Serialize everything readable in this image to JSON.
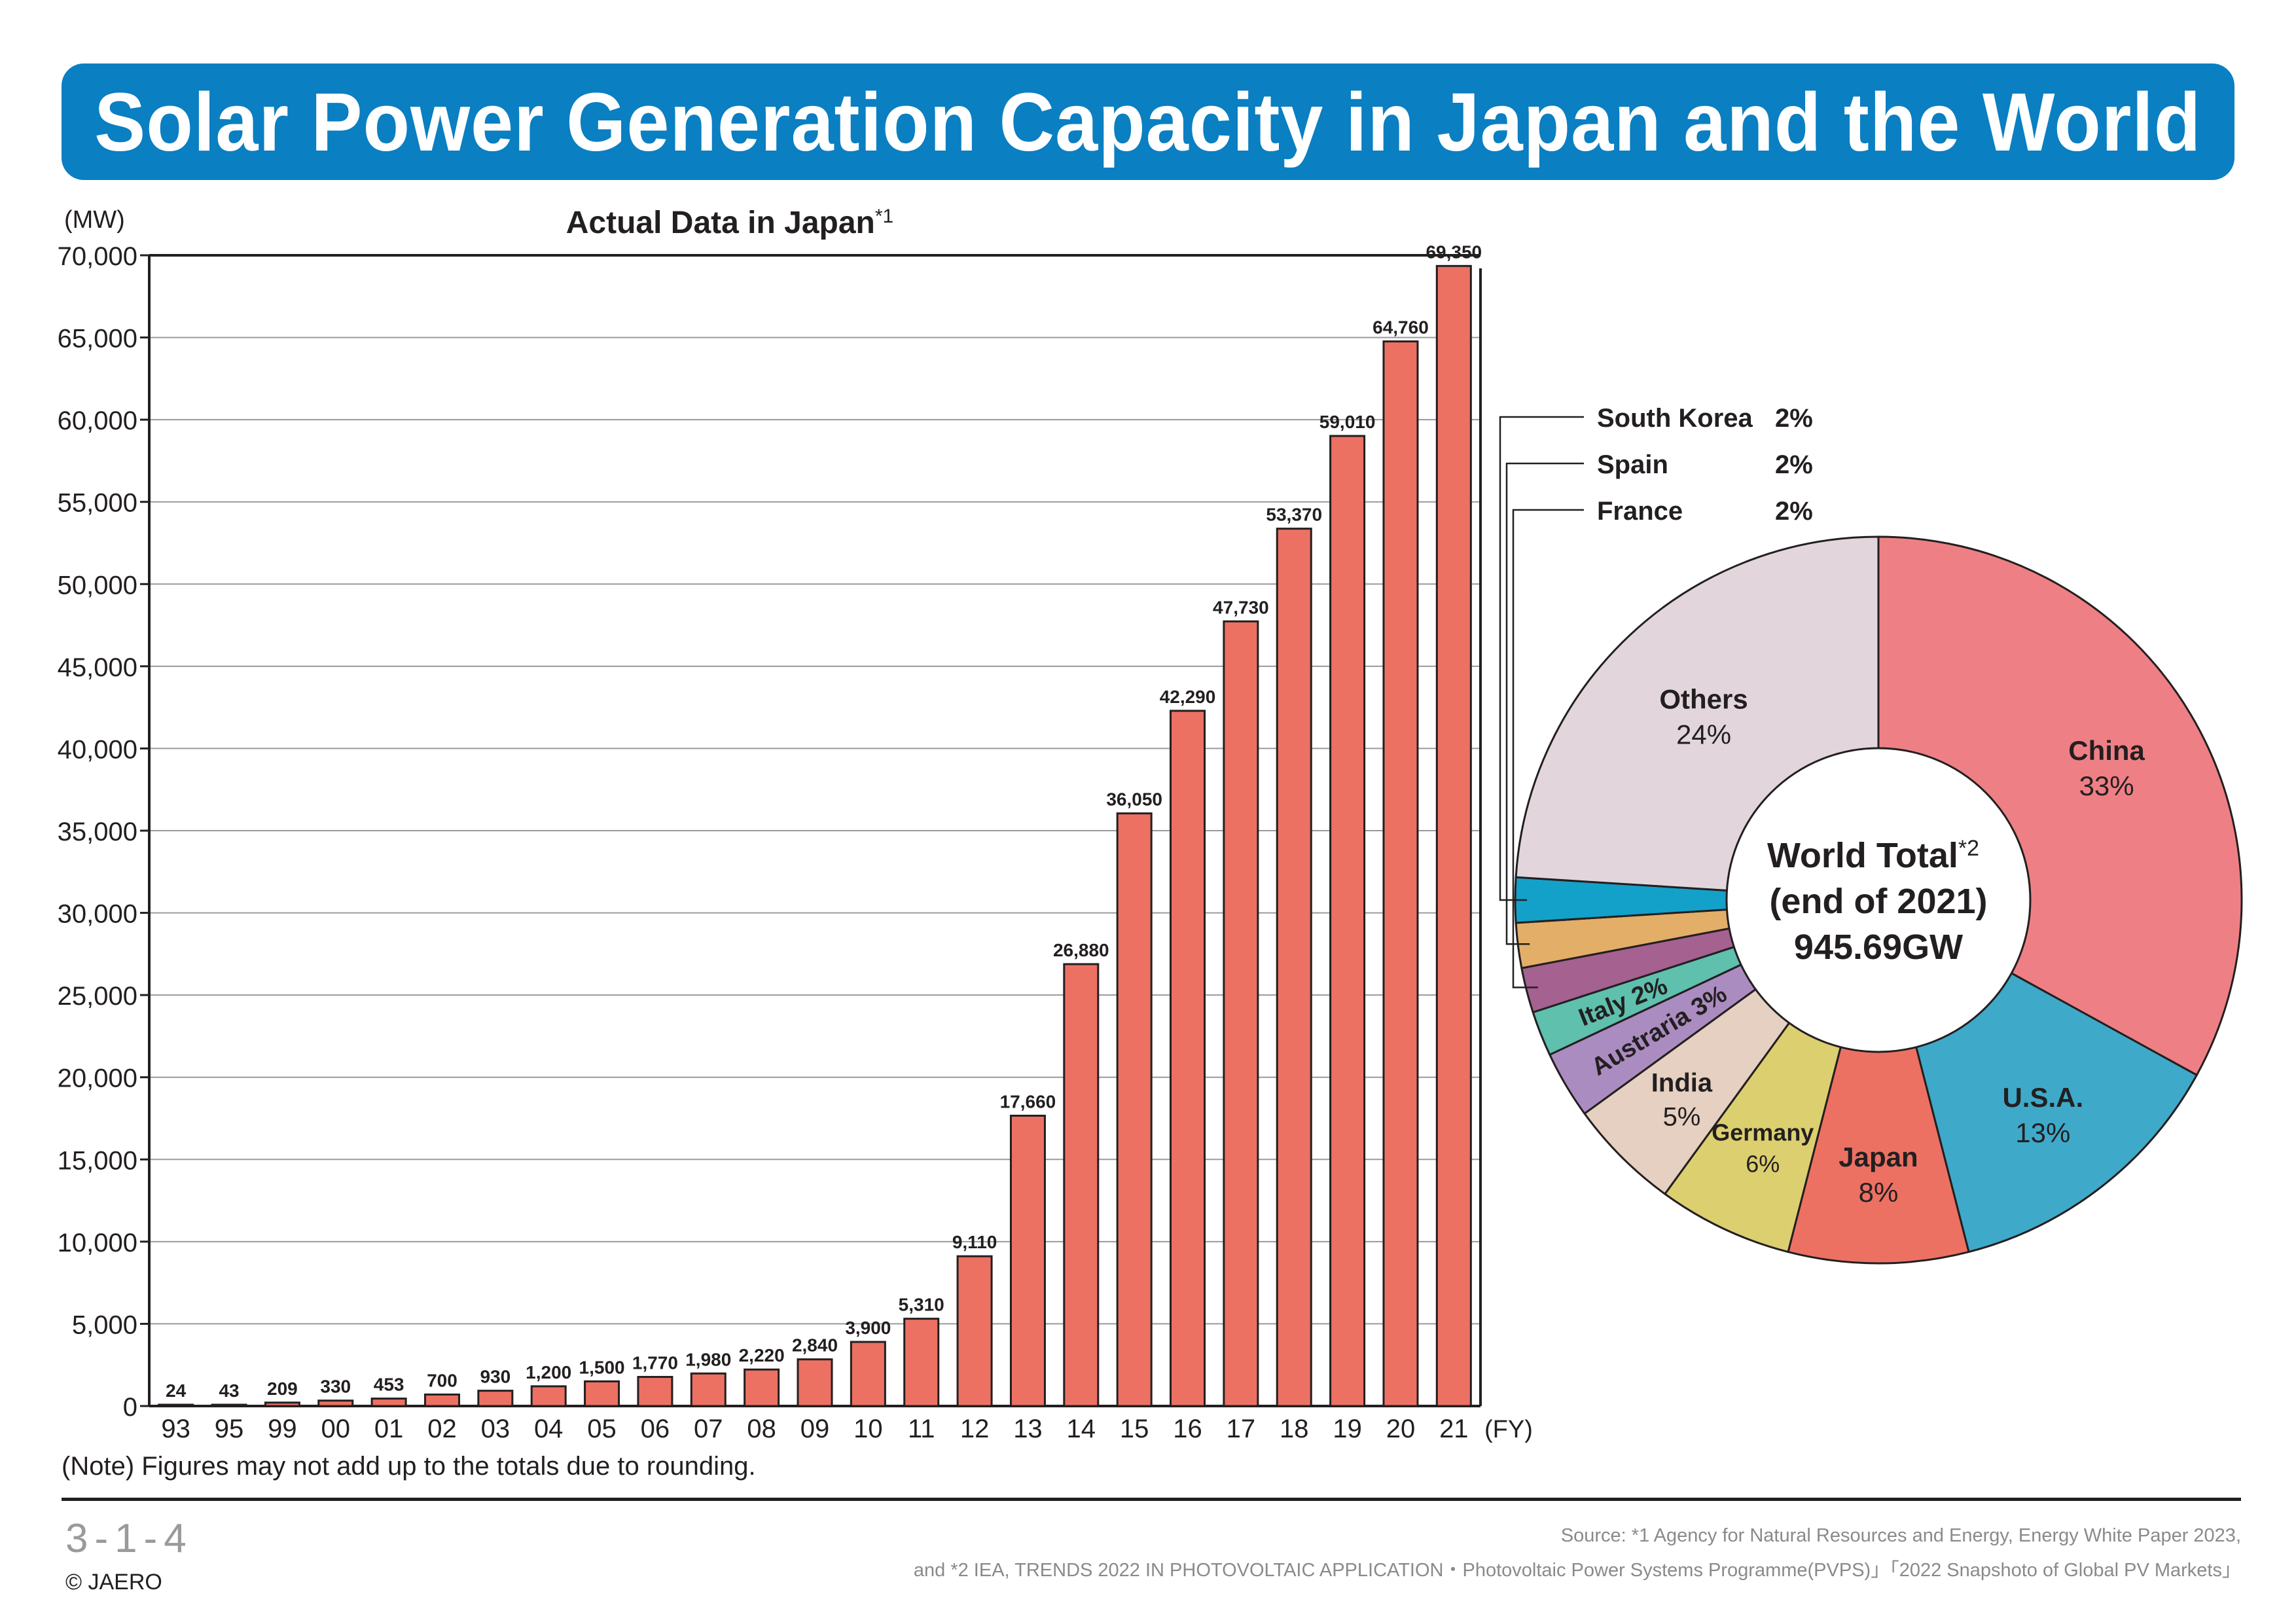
{
  "title": "Solar Power Generation Capacity in Japan and the World",
  "chart_data": [
    {
      "type": "bar",
      "title": "Actual Data in Japan",
      "title_footnote": "*1",
      "ylabel": "(MW)",
      "xlabel": "(FY)",
      "ylim": [
        0,
        70000
      ],
      "yticks": [
        0,
        5000,
        10000,
        15000,
        20000,
        25000,
        30000,
        35000,
        40000,
        45000,
        50000,
        55000,
        60000,
        65000,
        70000
      ],
      "ytick_labels": [
        "0",
        "5,000",
        "10,000",
        "15,000",
        "20,000",
        "25,000",
        "30,000",
        "35,000",
        "40,000",
        "45,000",
        "50,000",
        "55,000",
        "60,000",
        "65,000",
        "70,000"
      ],
      "grid": true,
      "categories": [
        "93",
        "95",
        "99",
        "00",
        "01",
        "02",
        "03",
        "04",
        "05",
        "06",
        "07",
        "08",
        "09",
        "10",
        "11",
        "12",
        "13",
        "14",
        "15",
        "16",
        "17",
        "18",
        "19",
        "20",
        "21"
      ],
      "values": [
        24,
        43,
        209,
        330,
        453,
        700,
        930,
        1200,
        1500,
        1770,
        1980,
        2220,
        2840,
        3900,
        5310,
        9110,
        17660,
        26880,
        36050,
        42290,
        47730,
        53370,
        59010,
        64760,
        69350
      ],
      "value_labels": [
        "24",
        "43",
        "209",
        "330",
        "453",
        "700",
        "930",
        "1,200",
        "1,500",
        "1,770",
        "1,980",
        "2,220",
        "2,840",
        "3,900",
        "5,310",
        "9,110",
        "17,660",
        "26,880",
        "36,050",
        "42,290",
        "47,730",
        "53,370",
        "59,010",
        "64,760",
        "69,350"
      ],
      "bar_color": "#ec7163"
    },
    {
      "type": "pie",
      "style": "donut",
      "center_label": [
        "World Total",
        "(end of 2021)",
        "945.69GW"
      ],
      "center_footnote": "*2",
      "slices": [
        {
          "label": "China",
          "pct": "33%",
          "value": 33,
          "color": "#ee8085"
        },
        {
          "label": "U.S.A.",
          "pct": "13%",
          "value": 13,
          "color": "#3fa9c9"
        },
        {
          "label": "Japan",
          "pct": "8%",
          "value": 8,
          "color": "#ec7163"
        },
        {
          "label": "Germany",
          "pct": "6%",
          "value": 6,
          "color": "#dccf6f"
        },
        {
          "label": "India",
          "pct": "5%",
          "value": 5,
          "color": "#e5d0c1"
        },
        {
          "label": "Austraria",
          "pct": "3%",
          "value": 3,
          "color": "#ab8cc1"
        },
        {
          "label": "Italy",
          "pct": "2%",
          "value": 2,
          "color": "#5ec0ad"
        },
        {
          "label": "France",
          "pct": "2%",
          "value": 2,
          "color": "#a5618f"
        },
        {
          "label": "Spain",
          "pct": "2%",
          "value": 2,
          "color": "#e2ae68"
        },
        {
          "label": "South Korea",
          "pct": "2%",
          "value": 2,
          "color": "#13a1c9"
        },
        {
          "label": "Others",
          "pct": "24%",
          "value": 24,
          "color": "#e2d6dc"
        }
      ],
      "callouts": [
        {
          "label": "South Korea",
          "pct": "2%"
        },
        {
          "label": "Spain",
          "pct": "2%"
        },
        {
          "label": "France",
          "pct": "2%"
        }
      ]
    }
  ],
  "note": "(Note) Figures may not add up to the totals due to rounding.",
  "page_number": "3-1-4",
  "copyright": "© JAERO",
  "source_line1": "Source: *1  Agency for Natural Resources and Energy, Energy White Paper 2023,",
  "source_line2": "and *2 IEA, TRENDS 2022 IN PHOTOVOLTAIC APPLICATION・Photovoltaic Power Systems Programme(PVPS)」「2022 Snapshoto of Global PV Markets」"
}
